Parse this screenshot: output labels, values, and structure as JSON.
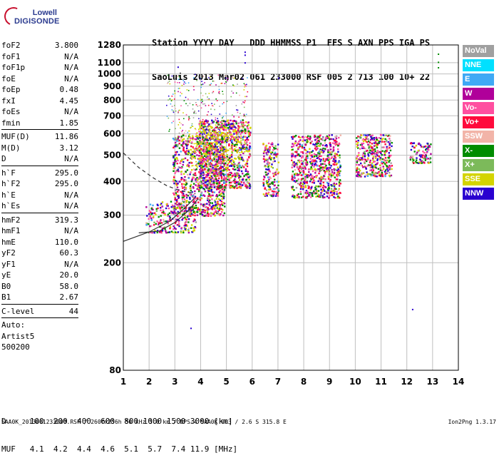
{
  "logo": {
    "line1": "Lowell",
    "line2": "DIGISONDE"
  },
  "header": {
    "line1": "Station YYYY DAY   DDD HHMMSS P1  FFS S AXN PPS IGA PS",
    "line2": "SaoLuis 2013 Mar02 061 233000 RSF 005 2 713 100 10+ 22"
  },
  "params": {
    "group1": [
      {
        "k": "foF2",
        "v": "3.800"
      },
      {
        "k": "foF1",
        "v": "N/A"
      },
      {
        "k": "foF1p",
        "v": "N/A"
      },
      {
        "k": "foE",
        "v": "N/A"
      },
      {
        "k": "foEp",
        "v": "0.48"
      },
      {
        "k": "fxI",
        "v": "4.45"
      },
      {
        "k": "foEs",
        "v": "N/A"
      },
      {
        "k": "fmin",
        "v": "1.85"
      }
    ],
    "group2": [
      {
        "k": "MUF(D)",
        "v": "11.86"
      },
      {
        "k": "M(D)",
        "v": "3.12"
      },
      {
        "k": "D",
        "v": "N/A"
      }
    ],
    "group3": [
      {
        "k": "h`F",
        "v": "295.0"
      },
      {
        "k": "h`F2",
        "v": "295.0"
      },
      {
        "k": "h`E",
        "v": "N/A"
      },
      {
        "k": "h`Es",
        "v": "N/A"
      }
    ],
    "group4": [
      {
        "k": "hmF2",
        "v": "319.3"
      },
      {
        "k": "hmF1",
        "v": "N/A"
      },
      {
        "k": "hmE",
        "v": "110.0"
      },
      {
        "k": "yF2",
        "v": "60.3"
      },
      {
        "k": "yF1",
        "v": "N/A"
      },
      {
        "k": "yE",
        "v": "20.0"
      },
      {
        "k": "B0",
        "v": "58.0"
      },
      {
        "k": "B1",
        "v": "2.67"
      }
    ],
    "clevel": {
      "k": "C-level",
      "v": "44"
    },
    "auto": [
      "Auto:",
      "Artist5",
      "500200"
    ]
  },
  "legend": [
    {
      "label": "NoVal",
      "color": "#a0a0a0"
    },
    {
      "label": "NNE",
      "color": "#00e0ff"
    },
    {
      "label": "E",
      "color": "#3fa9f5"
    },
    {
      "label": "W",
      "color": "#b0009a"
    },
    {
      "label": "Vo-",
      "color": "#ff4fa0"
    },
    {
      "label": "Vo+",
      "color": "#ff0a3c"
    },
    {
      "label": "SSW",
      "color": "#f2b4a8"
    },
    {
      "label": "X-",
      "color": "#008c00"
    },
    {
      "label": "X+",
      "color": "#7cba5a"
    },
    {
      "label": "SSE",
      "color": "#d4d400"
    },
    {
      "label": "NNW",
      "color": "#2a00d0"
    }
  ],
  "dmuf": {
    "d_line": "D     100  200  400  600  800 1000 1500 3000 [km]",
    "muf_line": "MUF   4.1  4.2  4.4  4.6  5.1  5.7  7.4 11.9 [MHz]"
  },
  "footer": "SAA0K_2013061233000.RSF / 260fx256h 50 kHz 5.0 km / DPS-4 SAA0K 903 / 2.6 S 315.8 E",
  "version": "Ion2Png 1.3.17",
  "chart_data": {
    "type": "scatter",
    "title": "",
    "xlabel": "",
    "ylabel": "",
    "xlim": [
      1,
      14
    ],
    "ylim": [
      80,
      1280
    ],
    "y_scale": "log",
    "x_ticks": [
      1,
      2,
      3,
      4,
      5,
      6,
      7,
      8,
      9,
      10,
      11,
      12,
      13,
      14
    ],
    "y_ticks": [
      80,
      200,
      300,
      400,
      500,
      600,
      700,
      800,
      900,
      1000,
      1100,
      1280
    ],
    "grid": true,
    "legend_position": "right",
    "echo_clusters": [
      {
        "fmin": 1.85,
        "fmax": 3.8,
        "hmin": 260,
        "hmax": 340
      },
      {
        "fmin": 2.9,
        "fmax": 4.9,
        "hmin": 300,
        "hmax": 600
      },
      {
        "fmin": 3.9,
        "fmax": 5.9,
        "hmin": 380,
        "hmax": 680
      },
      {
        "fmin": 6.4,
        "fmax": 7.0,
        "hmin": 355,
        "hmax": 560
      },
      {
        "fmin": 7.5,
        "fmax": 9.4,
        "hmin": 350,
        "hmax": 600
      },
      {
        "fmin": 10.0,
        "fmax": 11.4,
        "hmin": 420,
        "hmax": 600
      },
      {
        "fmin": 12.1,
        "fmax": 12.9,
        "hmin": 470,
        "hmax": 560
      }
    ],
    "trace_lines": [
      {
        "name": "",
        "style": "solid",
        "points": [
          [
            1,
            240
          ],
          [
            2,
            260
          ],
          [
            2.8,
            285
          ],
          [
            3.4,
            320
          ],
          [
            3.8,
            350
          ]
        ]
      },
      {
        "name": "",
        "style": "solid",
        "points": [
          [
            1.6,
            258
          ],
          [
            2.4,
            262
          ],
          [
            3.0,
            282
          ],
          [
            3.5,
            310
          ],
          [
            3.9,
            345
          ]
        ]
      },
      {
        "name": "",
        "style": "dashed",
        "points": [
          [
            1,
            510
          ],
          [
            1.6,
            450
          ],
          [
            2.2,
            410
          ],
          [
            2.7,
            385
          ],
          [
            3.2,
            370
          ],
          [
            3.8,
            360
          ]
        ]
      }
    ]
  }
}
